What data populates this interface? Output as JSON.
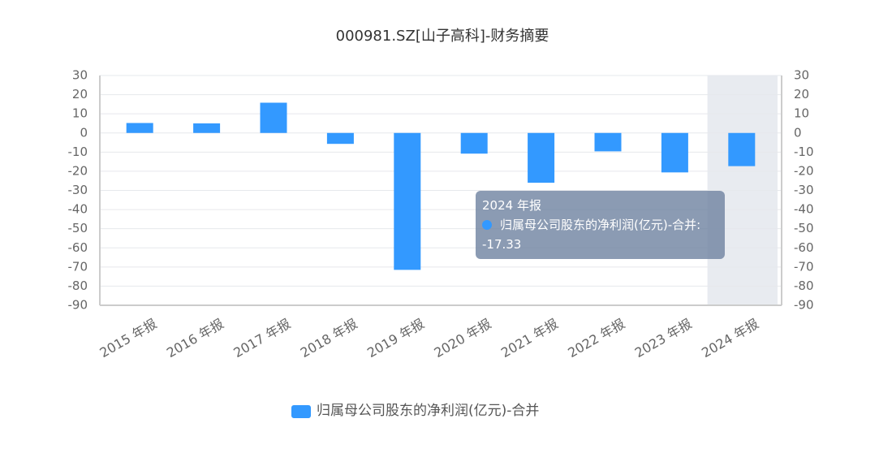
{
  "chart_data": {
    "type": "bar",
    "title": "000981.SZ[山子高科]-财务摘要",
    "categories": [
      "2015 年报",
      "2016 年报",
      "2017 年报",
      "2018 年报",
      "2019 年报",
      "2020 年报",
      "2021 年报",
      "2022 年报",
      "2023 年报",
      "2024 年报"
    ],
    "series": [
      {
        "name": "归属母公司股东的净利润(亿元)-合并",
        "color": "#3399ff",
        "values": [
          5.2,
          5.0,
          15.8,
          -5.7,
          -71.5,
          -10.8,
          -26.0,
          -9.6,
          -20.6,
          -17.33
        ]
      }
    ],
    "ylim": [
      -90,
      30
    ],
    "yticks": [
      -90,
      -80,
      -70,
      -60,
      -50,
      -40,
      -30,
      -20,
      -10,
      0,
      10,
      20,
      30
    ],
    "y2lim": [
      -90,
      30
    ],
    "y2ticks": [
      -90,
      -80,
      -70,
      -60,
      -50,
      -40,
      -30,
      -20,
      -10,
      0,
      10,
      20,
      30
    ],
    "grid": true,
    "legend": "bottom",
    "tooltip_index": 9
  }
}
